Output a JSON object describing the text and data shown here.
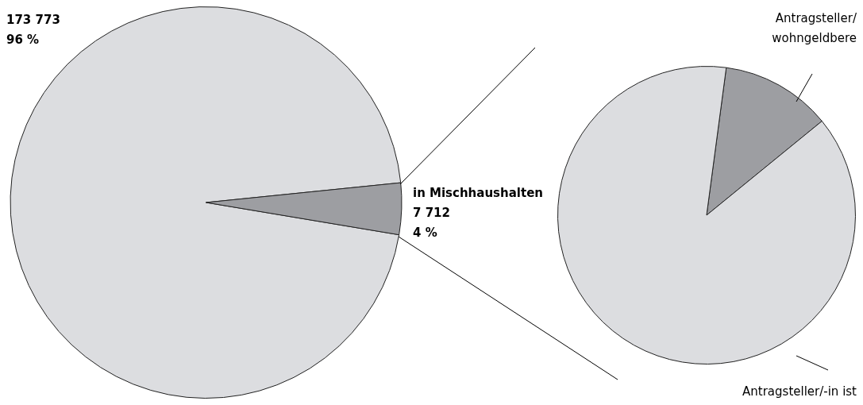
{
  "chart_data": [
    {
      "type": "pie",
      "categories": [
        null,
        "in Mischhaushalten"
      ],
      "values": [
        173773,
        7712
      ],
      "colors": [
        "#dcdde0",
        "#9d9ea2"
      ],
      "value_labels": [
        "173 773\n96 %",
        "7 712\n4 %"
      ]
    },
    {
      "type": "pie",
      "categories": [
        "Antragsteller/\nwohngeldbere",
        "Antragsteller/-in ist"
      ],
      "values": [
        12,
        88
      ],
      "colors": [
        "#9d9ea2",
        "#dcdde0"
      ]
    }
  ]
}
